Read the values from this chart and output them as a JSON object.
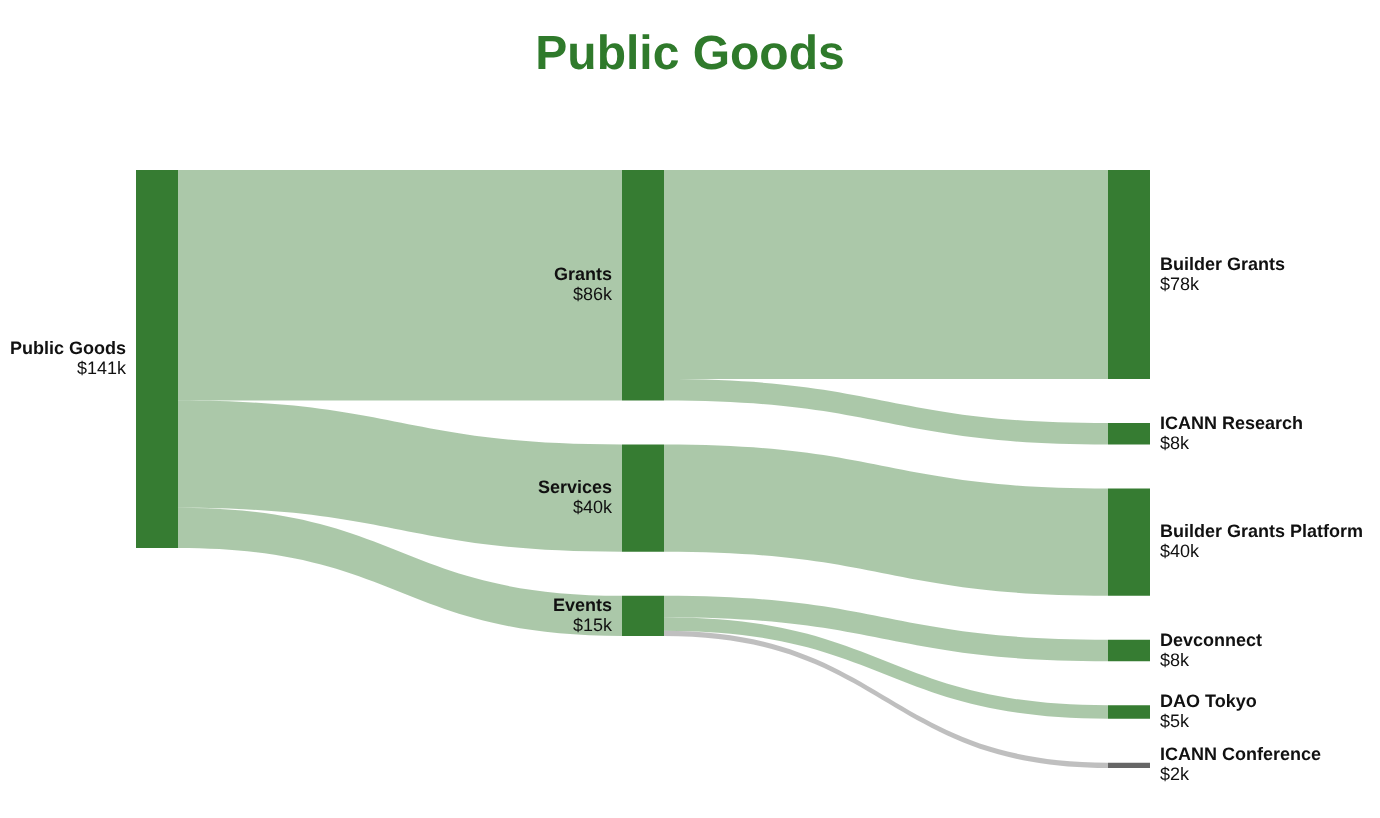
{
  "chart_data": {
    "type": "other",
    "title": "Public Goods",
    "categories": [
      "Public Goods",
      "Grants",
      "Services",
      "Events",
      "Builder Grants",
      "ICANN Research",
      "Builder Grants Platform",
      "Devconnect",
      "DAO Tokyo",
      "ICANN Conference"
    ],
    "values": [
      141,
      86,
      40,
      15,
      78,
      8,
      40,
      8,
      5,
      2
    ],
    "value_labels": [
      "$141k",
      "$86k",
      "$40k",
      "$15k",
      "$78k",
      "$8k",
      "$40k",
      "$8k",
      "$5k",
      "$2k"
    ],
    "colors": [
      "#367c32",
      "#367c32",
      "#367c32",
      "#367c32",
      "#367c32",
      "#367c32",
      "#367c32",
      "#367c32",
      "#367c32",
      "#666666"
    ]
  }
}
